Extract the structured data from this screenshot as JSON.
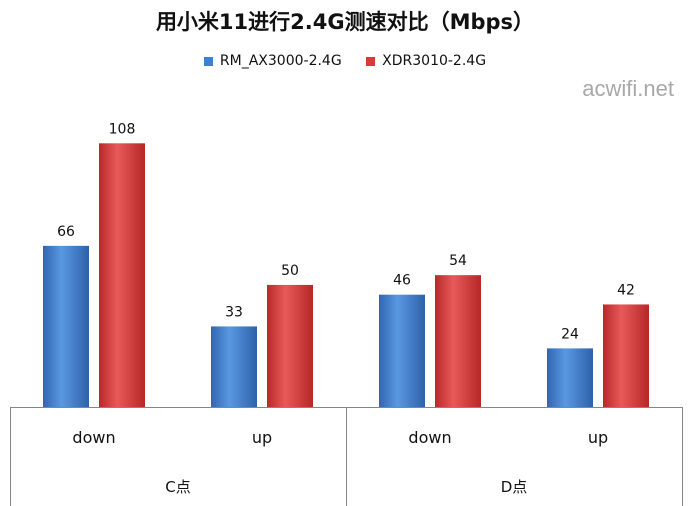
{
  "watermark": "acwifi.net",
  "colors": {
    "series1": "#3e7fd0",
    "series2": "#d93a3a",
    "axis": "#868686",
    "text": "#111111"
  },
  "chart_data": {
    "type": "bar",
    "title": "用小米11进行2.4G测速对比（Mbps）",
    "legend_position": "top",
    "grid": false,
    "groups": [
      {
        "label": "C点",
        "categories": [
          "down",
          "up"
        ]
      },
      {
        "label": "D点",
        "categories": [
          "down",
          "up"
        ]
      }
    ],
    "categories": [
      "down",
      "up",
      "down",
      "up"
    ],
    "series": [
      {
        "name": "RM_AX3000-2.4G",
        "values": [
          66,
          33,
          46,
          24
        ]
      },
      {
        "name": "XDR3010-2.4G",
        "values": [
          108,
          50,
          54,
          42
        ]
      }
    ],
    "ylim": [
      0,
      120
    ],
    "data_labels": true
  }
}
